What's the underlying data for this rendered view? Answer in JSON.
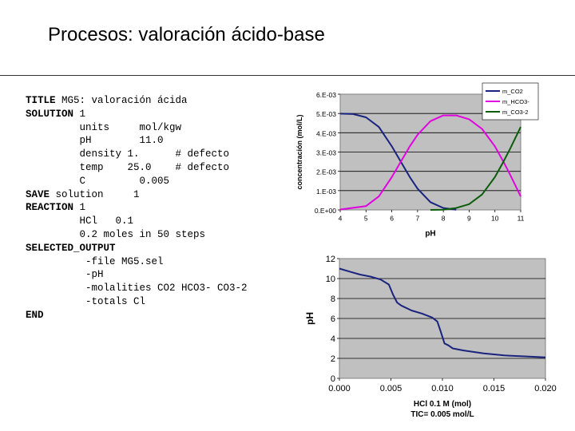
{
  "slide": {
    "title": "Procesos: valoración ácido-base"
  },
  "code_lines": [
    {
      "kw": "TITLE",
      "text": " MG5: valoración ácida"
    },
    {
      "kw": "SOLUTION",
      "text": " 1"
    },
    {
      "kw": "",
      "text": "         units     mol/kgw"
    },
    {
      "kw": "",
      "text": "         pH        11.0"
    },
    {
      "kw": "",
      "text": "         density 1.      # defecto"
    },
    {
      "kw": "",
      "text": "         temp    25.0    # defecto"
    },
    {
      "kw": "",
      "text": "         C         0.005"
    },
    {
      "kw": "SAVE",
      "text": " solution     1"
    },
    {
      "kw": "REACTION",
      "text": " 1"
    },
    {
      "kw": "",
      "text": "         HCl   0.1"
    },
    {
      "kw": "",
      "text": "         0.2 moles in 50 steps"
    },
    {
      "kw": "SELECTED_OUTPUT",
      "text": ""
    },
    {
      "kw": "",
      "text": "          -file MG5.sel"
    },
    {
      "kw": "",
      "text": "          -pH"
    },
    {
      "kw": "",
      "text": "          -molalities CO2 HCO3- CO3-2"
    },
    {
      "kw": "",
      "text": "          -totals Cl"
    },
    {
      "kw": "END",
      "text": ""
    }
  ],
  "chart_data": [
    {
      "type": "line",
      "xlabel": "pH",
      "ylabel": "concentración (mol/L)",
      "xlim": [
        4,
        11
      ],
      "ylim": [
        0,
        0.006
      ],
      "x_ticks": [
        "4",
        "5",
        "6",
        "7",
        "8",
        "9",
        "10",
        "11"
      ],
      "y_ticks": [
        "0.E+00",
        "1.E-03",
        "2.E-03",
        "3.E-03",
        "4.E-03",
        "5.E-03",
        "6.E-03"
      ],
      "legend_position": "top-right",
      "legend_labels": [
        "m_CO2",
        "m_HCO3-",
        "m_CO3-2"
      ],
      "grid": "horizontal",
      "plot_background": "#c0c0c0",
      "series": [
        {
          "name": "m_CO2",
          "color": "#1a237e",
          "x": [
            4,
            4.5,
            5,
            5.5,
            6,
            6.35,
            6.7,
            7,
            7.5,
            8,
            8.5
          ],
          "y": [
            0.00499,
            0.00497,
            0.0048,
            0.0043,
            0.0033,
            0.0025,
            0.0017,
            0.0011,
            0.0004,
            0.0001,
            1e-05
          ]
        },
        {
          "name": "m_HCO3-",
          "color": "#e000e0",
          "x": [
            4,
            5,
            5.5,
            6,
            6.35,
            6.7,
            7,
            7.5,
            8,
            8.5,
            9,
            9.5,
            10,
            10.33,
            10.6,
            11
          ],
          "y": [
            2e-05,
            0.0002,
            0.0007,
            0.0017,
            0.0025,
            0.0033,
            0.0039,
            0.0046,
            0.0049,
            0.0049,
            0.0047,
            0.0042,
            0.0033,
            0.0025,
            0.0018,
            0.0007
          ]
        },
        {
          "name": "m_CO3-2",
          "color": "#0b5d0b",
          "x": [
            7.5,
            8,
            8.5,
            9,
            9.5,
            10,
            10.33,
            10.6,
            11
          ],
          "y": [
            0,
            1e-05,
            0.0001,
            0.0003,
            0.0008,
            0.0017,
            0.0025,
            0.0032,
            0.0043
          ]
        }
      ]
    },
    {
      "type": "line",
      "title": "TIC= 0.005 mol/L",
      "xlabel": "HCl 0.1 M  (mol)",
      "ylabel": "pH",
      "xlim": [
        0,
        0.02
      ],
      "ylim": [
        0,
        12
      ],
      "x_ticks": [
        "0.000",
        "0.005",
        "0.010",
        "0.015",
        "0.020"
      ],
      "y_ticks": [
        "0",
        "2",
        "4",
        "6",
        "8",
        "10",
        "12"
      ],
      "grid": "horizontal",
      "plot_background": "#c0c0c0",
      "series": [
        {
          "color": "#1a237e",
          "x": [
            0,
            0.001,
            0.002,
            0.003,
            0.004,
            0.0048,
            0.0052,
            0.0056,
            0.006,
            0.007,
            0.008,
            0.009,
            0.0095,
            0.0098,
            0.0102,
            0.0106,
            0.011,
            0.012,
            0.014,
            0.016,
            0.018,
            0.02
          ],
          "y": [
            11.0,
            10.7,
            10.4,
            10.2,
            9.9,
            9.4,
            8.4,
            7.6,
            7.3,
            6.8,
            6.5,
            6.1,
            5.7,
            4.8,
            3.5,
            3.3,
            3.0,
            2.8,
            2.5,
            2.3,
            2.2,
            2.1
          ]
        }
      ]
    }
  ]
}
